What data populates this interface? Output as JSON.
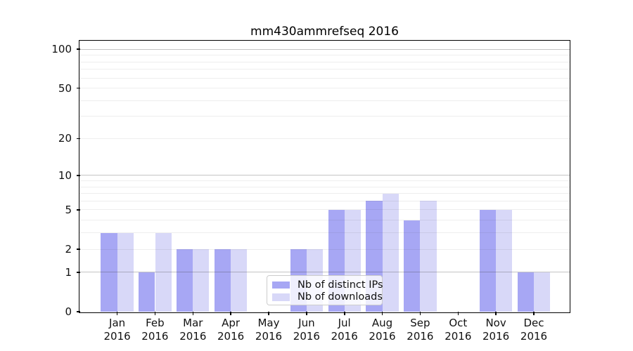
{
  "chart_data": {
    "type": "bar",
    "title": "mm430ammrefseq 2016",
    "categories": [
      "Jan 2016",
      "Feb 2016",
      "Mar 2016",
      "Apr 2016",
      "May 2016",
      "Jun 2016",
      "Jul 2016",
      "Aug 2016",
      "Sep 2016",
      "Oct 2016",
      "Nov 2016",
      "Dec 2016"
    ],
    "series": [
      {
        "name": "Nb of distinct IPs",
        "color": "#a7a7f4",
        "values": [
          3,
          1,
          2,
          2,
          0,
          2,
          5,
          6,
          4,
          0,
          5,
          1
        ]
      },
      {
        "name": "Nb of downloads",
        "color": "#d8d8f8",
        "values": [
          3,
          3,
          2,
          2,
          0,
          2,
          5,
          7,
          6,
          0,
          5,
          1
        ]
      }
    ],
    "y_axis": {
      "scale": "log1p",
      "ticks": [
        0,
        1,
        2,
        5,
        10,
        20,
        50,
        100
      ],
      "major_gridlines": [
        1,
        10,
        100
      ],
      "minor_gridlines": [
        2,
        3,
        4,
        5,
        6,
        7,
        8,
        9,
        20,
        30,
        40,
        50,
        60,
        70,
        80,
        90
      ],
      "ylim": [
        0,
        115
      ]
    },
    "grid": true,
    "legend_position": "lower center",
    "background_color": "#ffffff",
    "frame_color": "#000000"
  }
}
